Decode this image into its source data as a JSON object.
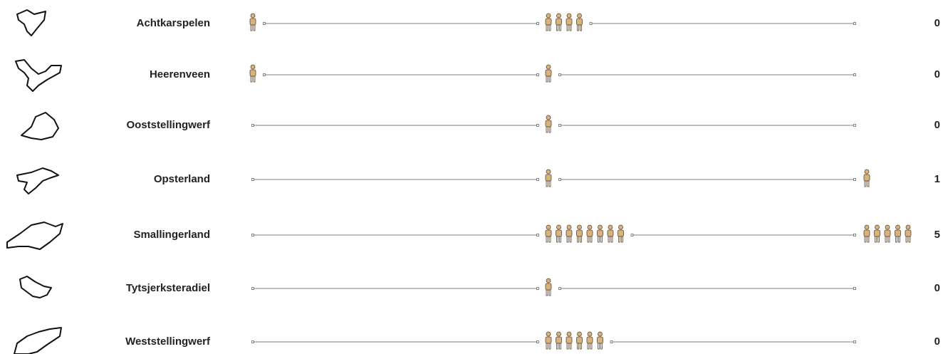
{
  "chart_data": {
    "type": "pictogram",
    "rows": [
      {
        "name": "Achtkarspelen",
        "groups": [
          1,
          4,
          0
        ],
        "value": 0
      },
      {
        "name": "Heerenveen",
        "groups": [
          1,
          1,
          0
        ],
        "value": 0
      },
      {
        "name": "Ooststellingwerf",
        "groups": [
          0,
          1,
          0
        ],
        "value": 0
      },
      {
        "name": "Opsterland",
        "groups": [
          0,
          1,
          1
        ],
        "value": 1
      },
      {
        "name": "Smallingerland",
        "groups": [
          0,
          8,
          5
        ],
        "value": 5
      },
      {
        "name": "Tytsjerksteradiel",
        "groups": [
          0,
          1,
          0
        ],
        "value": 0
      },
      {
        "name": "Weststellingwerf",
        "groups": [
          0,
          6,
          0
        ],
        "value": 0
      }
    ],
    "icon_color": "#d9b37e"
  }
}
